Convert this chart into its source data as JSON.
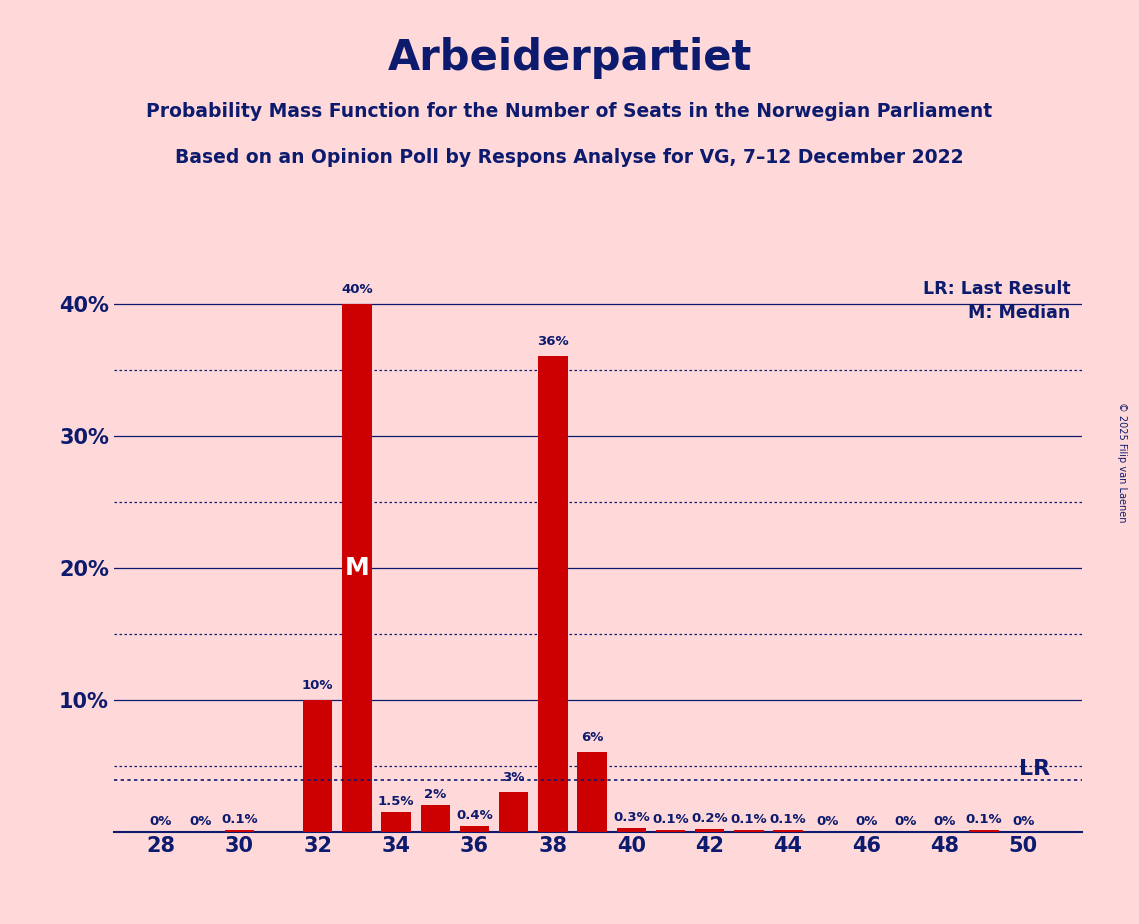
{
  "title": "Arbeiderpartiet",
  "subtitle1": "Probability Mass Function for the Number of Seats in the Norwegian Parliament",
  "subtitle2": "Based on an Opinion Poll by Respons Analyse for VG, 7–12 December 2022",
  "copyright": "© 2025 Filip van Laenen",
  "background_color": "#FFD9D9",
  "bar_color": "#CC0000",
  "text_color": "#0D1B6E",
  "seats": [
    28,
    29,
    30,
    31,
    32,
    33,
    34,
    35,
    36,
    37,
    38,
    39,
    40,
    41,
    42,
    43,
    44,
    45,
    46,
    47,
    48,
    49,
    50
  ],
  "values": [
    0.0,
    0.0,
    0.1,
    0.0,
    10.0,
    40.0,
    1.5,
    2.0,
    0.4,
    3.0,
    36.0,
    6.0,
    0.3,
    0.1,
    0.2,
    0.1,
    0.1,
    0.0,
    0.0,
    0.0,
    0.0,
    0.1,
    0.0
  ],
  "labels": [
    "0%",
    "0%",
    "0.1%",
    "",
    "10%",
    "40%",
    "1.5%",
    "2%",
    "0.4%",
    "3%",
    "36%",
    "6%",
    "0.3%",
    "0.1%",
    "0.2%",
    "0.1%",
    "0.1%",
    "0%",
    "0%",
    "0%",
    "0%",
    "0.1%",
    "0%"
  ],
  "last_result_y": 3.9,
  "median_seat": 33,
  "ylim_max": 42,
  "yticks": [
    0,
    10,
    20,
    30,
    40
  ],
  "ytick_labels": [
    "",
    "10%",
    "20%",
    "30%",
    "40%"
  ],
  "xtick_seats": [
    28,
    30,
    32,
    34,
    36,
    38,
    40,
    42,
    44,
    46,
    48,
    50
  ],
  "legend_lr": "LR: Last Result",
  "legend_m": "M: Median",
  "dotted_grid_values": [
    5,
    15,
    25,
    35
  ],
  "solid_grid_values": [
    10,
    20,
    30,
    40
  ]
}
